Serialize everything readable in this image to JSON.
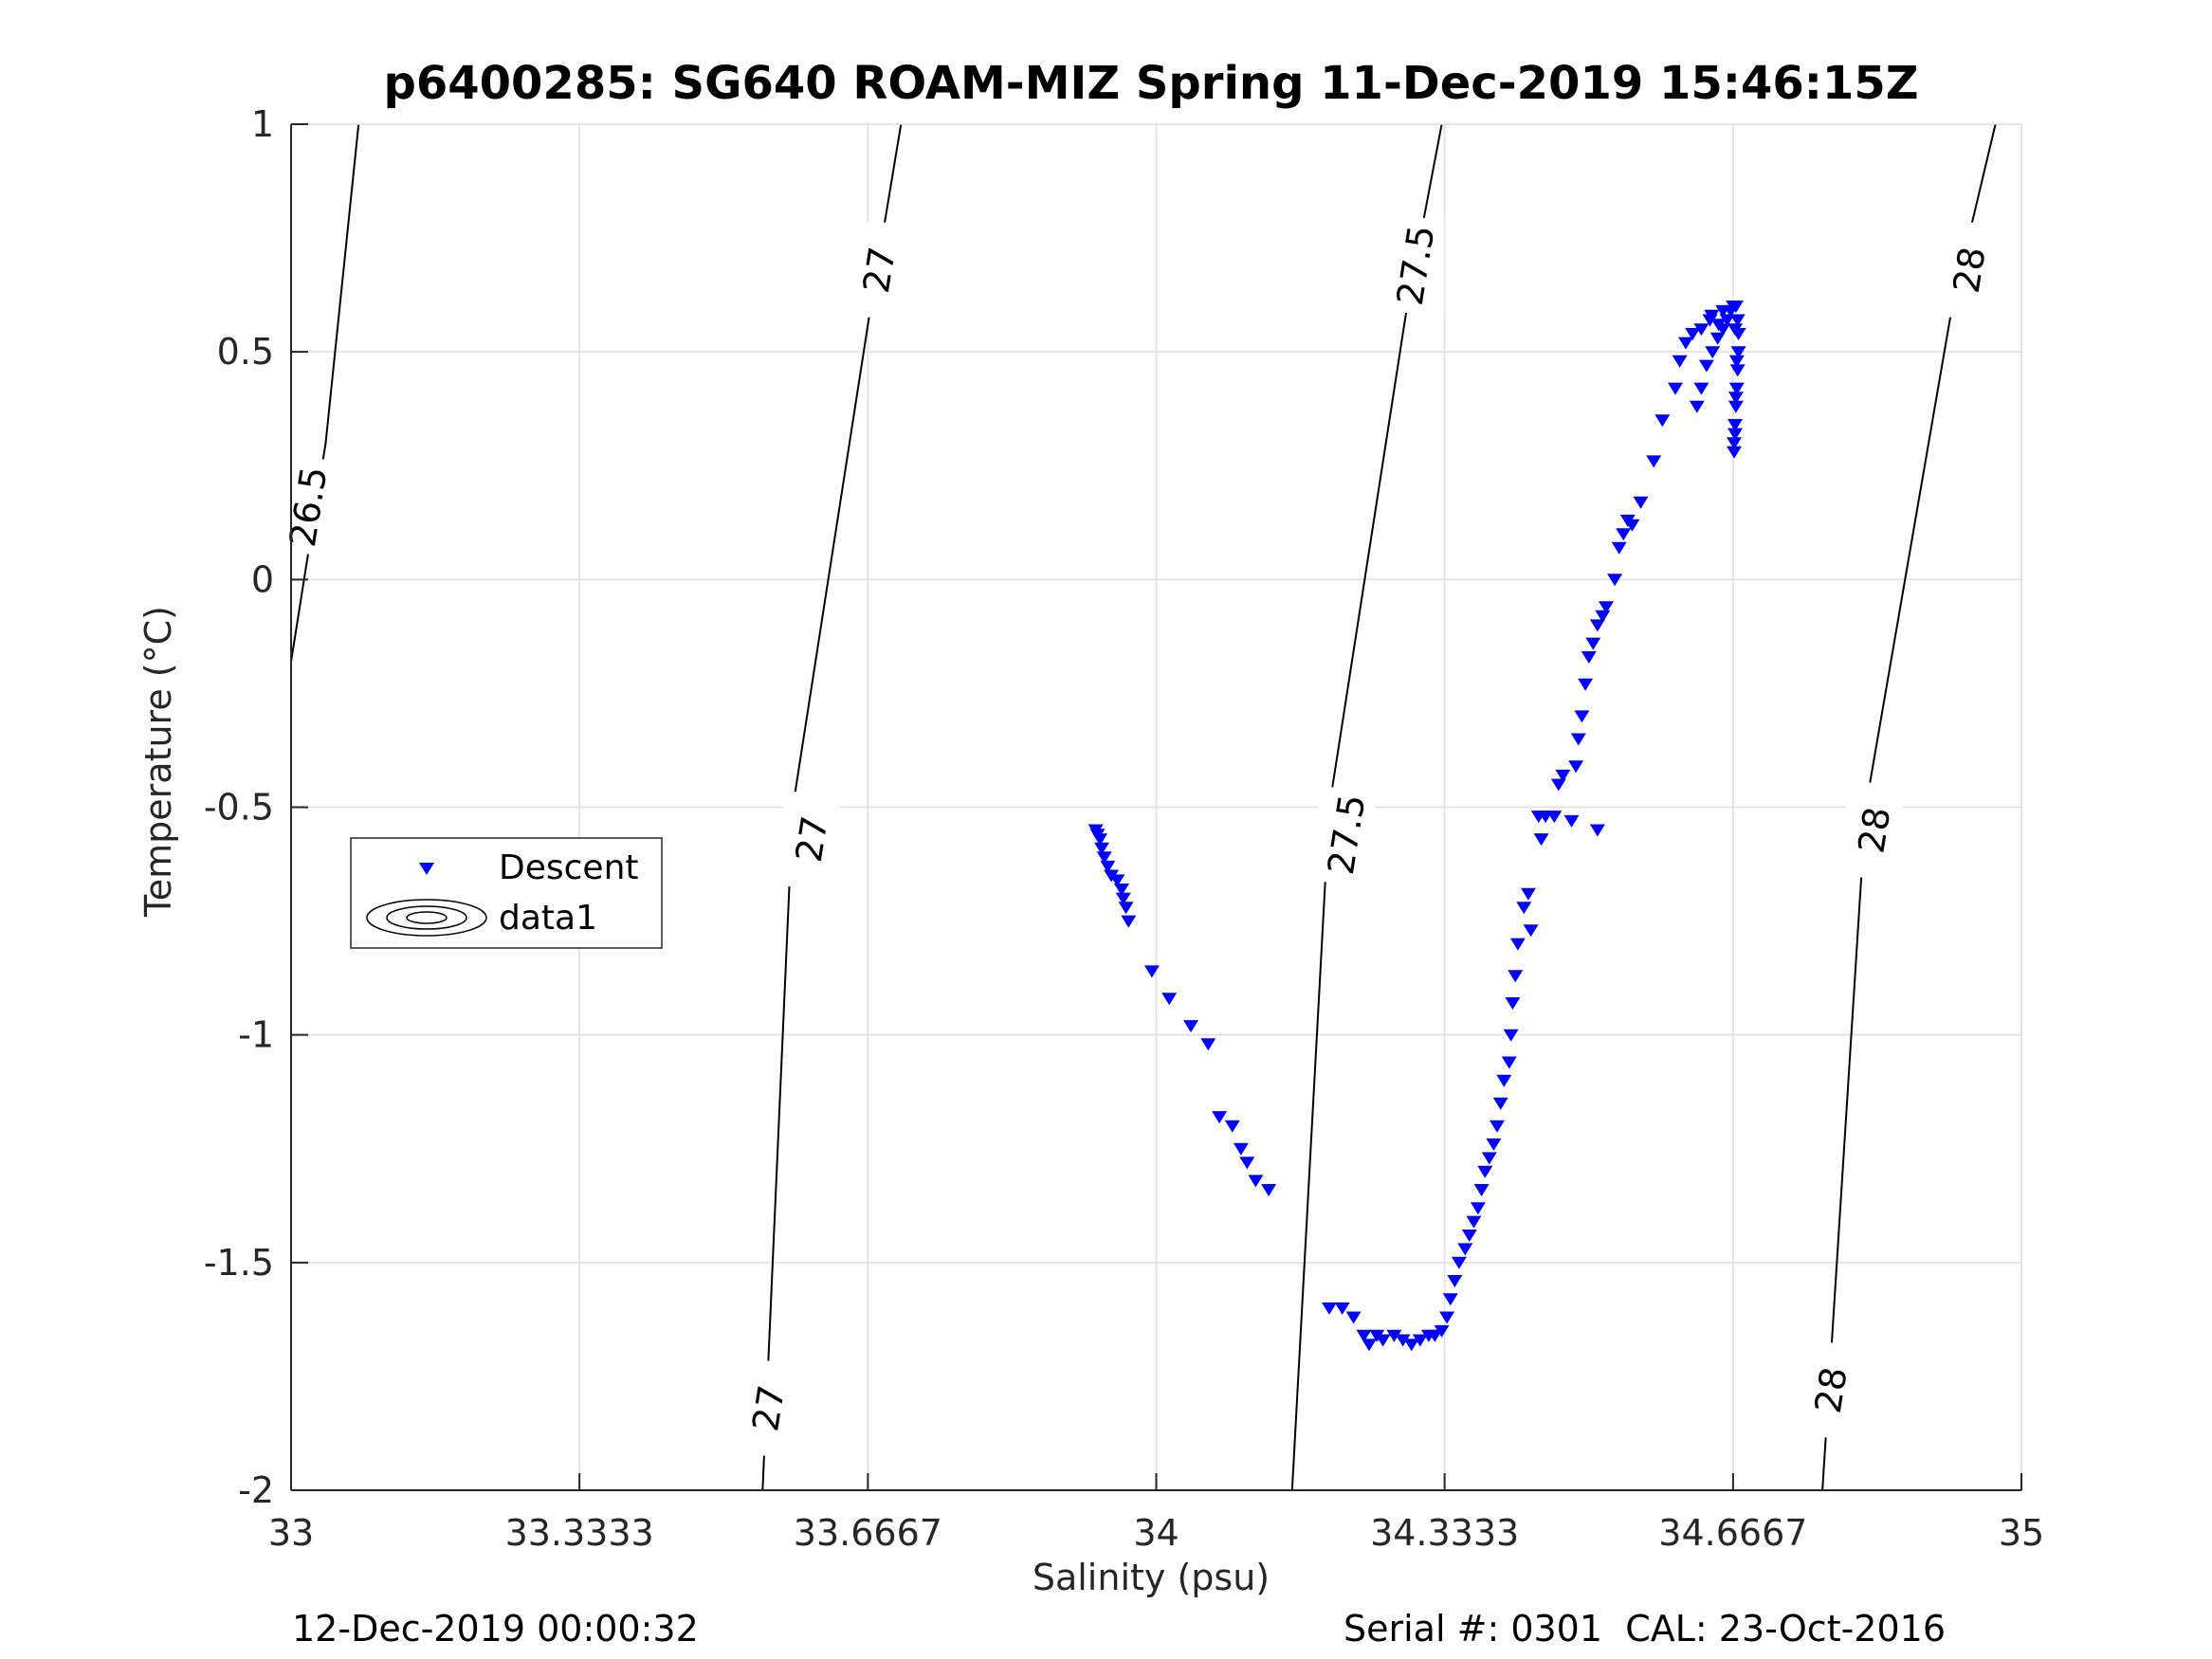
{
  "chart_data": {
    "type": "scatter",
    "title": "p6400285: SG640 ROAM-MIZ Spring 11-Dec-2019 15:46:15Z",
    "xlabel": "Salinity (psu)",
    "ylabel": "Temperature (°C)",
    "xlim": [
      33,
      35
    ],
    "ylim": [
      -2,
      1
    ],
    "grid": true,
    "x_ticks": [
      33,
      33.3333,
      33.6667,
      34,
      34.3333,
      34.6667,
      35
    ],
    "x_tick_labels": [
      "33",
      "33.3333",
      "33.6667",
      "34",
      "34.3333",
      "34.6667",
      "35"
    ],
    "y_ticks": [
      -2,
      -1.5,
      -1,
      -0.5,
      0,
      0.5,
      1
    ],
    "y_tick_labels": [
      "-2",
      "-1.5",
      "-1",
      "-0.5",
      "0",
      "0.5",
      "1"
    ],
    "legend": {
      "placement": "middle-left",
      "entries": [
        {
          "label": "Descent",
          "marker": "triangle-down",
          "color": "#0000ff"
        },
        {
          "label": "data1",
          "marker": "contour",
          "color": "#000000"
        }
      ]
    },
    "contours": [
      {
        "level": "26.5",
        "points": [
          [
            33.0,
            -0.18
          ],
          [
            33.04,
            0.3
          ],
          [
            33.078,
            1.0
          ]
        ],
        "labels": [
          {
            "x": 33.02,
            "y": 0.16
          }
        ]
      },
      {
        "level": "27",
        "points": [
          [
            33.545,
            -2.0
          ],
          [
            33.58,
            -0.5
          ],
          [
            33.67,
            0.6
          ],
          [
            33.705,
            1.0
          ]
        ],
        "labels": [
          {
            "x": 33.552,
            "y": -1.82
          },
          {
            "x": 33.602,
            "y": -0.57
          },
          {
            "x": 33.68,
            "y": 0.68
          }
        ]
      },
      {
        "level": "27.5",
        "points": [
          [
            34.157,
            -2.0
          ],
          [
            34.2,
            -0.5
          ],
          [
            34.29,
            0.6
          ],
          [
            34.33,
            1.0
          ]
        ],
        "labels": [
          {
            "x": 34.22,
            "y": -0.56
          },
          {
            "x": 34.3,
            "y": 0.69
          }
        ]
      },
      {
        "level": "28",
        "points": [
          [
            34.77,
            -2.0
          ],
          [
            34.82,
            -0.5
          ],
          [
            34.92,
            0.6
          ],
          [
            34.97,
            1.0
          ]
        ],
        "labels": [
          {
            "x": 34.78,
            "y": -1.78
          },
          {
            "x": 34.83,
            "y": -0.55
          },
          {
            "x": 34.94,
            "y": 0.68
          }
        ]
      }
    ],
    "series": [
      {
        "name": "Descent",
        "marker": "triangle-down",
        "color": "#0000ff",
        "points": [
          [
            33.93,
            -0.55
          ],
          [
            33.932,
            -0.56
          ],
          [
            33.935,
            -0.57
          ],
          [
            33.937,
            -0.59
          ],
          [
            33.94,
            -0.61
          ],
          [
            33.944,
            -0.63
          ],
          [
            33.948,
            -0.65
          ],
          [
            33.955,
            -0.66
          ],
          [
            33.96,
            -0.68
          ],
          [
            33.962,
            -0.7
          ],
          [
            33.965,
            -0.72
          ],
          [
            33.968,
            -0.75
          ],
          [
            33.995,
            -0.86
          ],
          [
            34.015,
            -0.92
          ],
          [
            34.04,
            -0.98
          ],
          [
            34.06,
            -1.02
          ],
          [
            34.073,
            -1.18
          ],
          [
            34.088,
            -1.2
          ],
          [
            34.098,
            -1.25
          ],
          [
            34.105,
            -1.28
          ],
          [
            34.115,
            -1.32
          ],
          [
            34.13,
            -1.34
          ],
          [
            34.2,
            -1.6
          ],
          [
            34.215,
            -1.6
          ],
          [
            34.228,
            -1.62
          ],
          [
            34.24,
            -1.66
          ],
          [
            34.246,
            -1.68
          ],
          [
            34.255,
            -1.66
          ],
          [
            34.262,
            -1.67
          ],
          [
            34.275,
            -1.66
          ],
          [
            34.285,
            -1.67
          ],
          [
            34.295,
            -1.68
          ],
          [
            34.305,
            -1.67
          ],
          [
            34.315,
            -1.66
          ],
          [
            34.322,
            -1.66
          ],
          [
            34.33,
            -1.65
          ],
          [
            34.336,
            -1.62
          ],
          [
            34.34,
            -1.58
          ],
          [
            34.345,
            -1.54
          ],
          [
            34.35,
            -1.5
          ],
          [
            34.357,
            -1.47
          ],
          [
            34.362,
            -1.44
          ],
          [
            34.367,
            -1.41
          ],
          [
            34.372,
            -1.38
          ],
          [
            34.376,
            -1.34
          ],
          [
            34.38,
            -1.3
          ],
          [
            34.385,
            -1.27
          ],
          [
            34.39,
            -1.24
          ],
          [
            34.394,
            -1.2
          ],
          [
            34.398,
            -1.15
          ],
          [
            34.402,
            -1.1
          ],
          [
            34.408,
            -1.06
          ],
          [
            34.41,
            -1.0
          ],
          [
            34.412,
            -0.93
          ],
          [
            34.415,
            -0.87
          ],
          [
            34.418,
            -0.8
          ],
          [
            34.425,
            -0.72
          ],
          [
            34.43,
            -0.69
          ],
          [
            34.433,
            -0.77
          ],
          [
            34.445,
            -0.57
          ],
          [
            34.442,
            -0.52
          ],
          [
            34.45,
            -0.52
          ],
          [
            34.46,
            -0.52
          ],
          [
            34.465,
            -0.45
          ],
          [
            34.47,
            -0.43
          ],
          [
            34.48,
            -0.53
          ],
          [
            34.485,
            -0.41
          ],
          [
            34.488,
            -0.35
          ],
          [
            34.492,
            -0.3
          ],
          [
            34.496,
            -0.23
          ],
          [
            34.5,
            -0.17
          ],
          [
            34.505,
            -0.14
          ],
          [
            34.51,
            -0.1
          ],
          [
            34.516,
            -0.08
          ],
          [
            34.52,
            -0.06
          ],
          [
            34.51,
            -0.55
          ],
          [
            34.53,
            0.0
          ],
          [
            34.535,
            0.07
          ],
          [
            34.54,
            0.1
          ],
          [
            34.545,
            0.13
          ],
          [
            34.55,
            0.12
          ],
          [
            34.56,
            0.17
          ],
          [
            34.575,
            0.26
          ],
          [
            34.585,
            0.35
          ],
          [
            34.6,
            0.42
          ],
          [
            34.605,
            0.48
          ],
          [
            34.612,
            0.52
          ],
          [
            34.62,
            0.54
          ],
          [
            34.63,
            0.55
          ],
          [
            34.64,
            0.57
          ],
          [
            34.642,
            0.58
          ],
          [
            34.65,
            0.56
          ],
          [
            34.655,
            0.59
          ],
          [
            34.625,
            0.38
          ],
          [
            34.63,
            0.42
          ],
          [
            34.636,
            0.47
          ],
          [
            34.643,
            0.5
          ],
          [
            34.649,
            0.53
          ],
          [
            34.655,
            0.55
          ],
          [
            34.66,
            0.57
          ],
          [
            34.664,
            0.59
          ],
          [
            34.667,
            0.6
          ],
          [
            34.67,
            0.6
          ],
          [
            34.672,
            0.57
          ],
          [
            34.673,
            0.54
          ],
          [
            34.673,
            0.5
          ],
          [
            34.672,
            0.46
          ],
          [
            34.671,
            0.42
          ],
          [
            34.67,
            0.38
          ],
          [
            34.669,
            0.34
          ],
          [
            34.668,
            0.3
          ],
          [
            34.668,
            0.28
          ],
          [
            34.669,
            0.32
          ],
          [
            34.67,
            0.4
          ],
          [
            34.671,
            0.48
          ],
          [
            34.669,
            0.55
          ]
        ]
      }
    ]
  },
  "footer": {
    "left": "12-Dec-2019 00:00:32",
    "right": "Serial #: 0301  CAL: 23-Oct-2016"
  }
}
